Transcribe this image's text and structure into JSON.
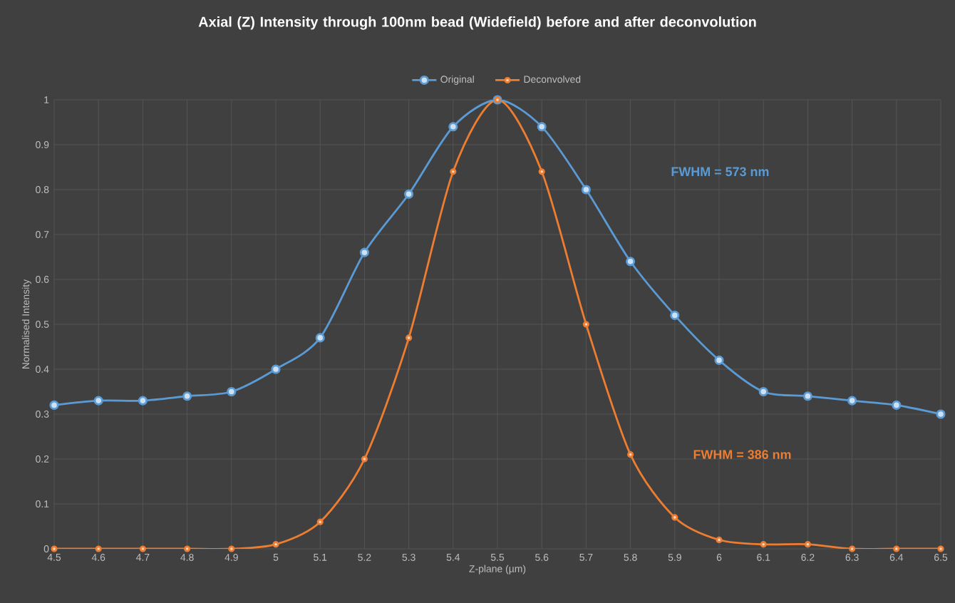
{
  "chart_data": {
    "type": "line",
    "title": "Axial (Z) Intensity through 100nm bead (Widefield) before and after deconvolution",
    "xlabel": "Z-plane (µm)",
    "ylabel": "Normalised Intensity",
    "x": [
      4.5,
      4.6,
      4.7,
      4.8,
      4.9,
      5.0,
      5.1,
      5.2,
      5.3,
      5.4,
      5.5,
      5.6,
      5.7,
      5.8,
      5.9,
      6.0,
      6.1,
      6.2,
      6.3,
      6.4,
      6.5
    ],
    "series": [
      {
        "name": "Original",
        "color": "#5b9bd5",
        "values": [
          0.32,
          0.33,
          0.33,
          0.34,
          0.35,
          0.4,
          0.47,
          0.66,
          0.79,
          0.94,
          1.0,
          0.94,
          0.8,
          0.64,
          0.52,
          0.42,
          0.35,
          0.34,
          0.33,
          0.32,
          0.3
        ]
      },
      {
        "name": "Deconvolved",
        "color": "#ed7d31",
        "values": [
          0,
          0,
          0,
          0,
          0,
          0.01,
          0.06,
          0.2,
          0.47,
          0.84,
          1.0,
          0.84,
          0.5,
          0.21,
          0.07,
          0.02,
          0.01,
          0.01,
          0,
          0,
          0
        ]
      }
    ],
    "annotations": [
      "FWHM = 573 nm",
      "FWHM = 386 nm"
    ],
    "xlim": [
      4.5,
      6.5
    ],
    "xticks": [
      4.5,
      4.6,
      4.7,
      4.8,
      4.9,
      5,
      5.1,
      5.2,
      5.3,
      5.4,
      5.5,
      5.6,
      5.7,
      5.8,
      5.9,
      6,
      6.1,
      6.2,
      6.3,
      6.4,
      6.5
    ],
    "ylim": [
      0,
      1
    ],
    "yticks": [
      0,
      0.1,
      0.2,
      0.3,
      0.4,
      0.5,
      0.6,
      0.7,
      0.8,
      0.9,
      1
    ],
    "grid": true,
    "legend": "top",
    "marker": "circle",
    "line_style": "solid"
  }
}
